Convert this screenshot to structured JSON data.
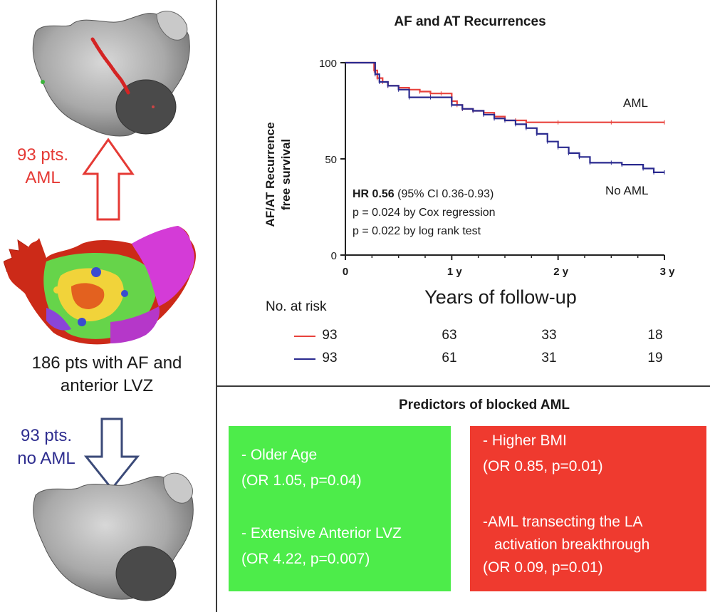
{
  "left_panel": {
    "top_label_line1": "93 pts.",
    "top_label_line2": "AML",
    "middle_caption_line1": "186 pts with AF and",
    "middle_caption_line2": "anterior LVZ",
    "bottom_label_line1": "93 pts.",
    "bottom_label_line2": "no AML",
    "colors": {
      "aml": "#e53a35",
      "no_aml": "#2e2d8f"
    }
  },
  "chart_data": {
    "type": "line",
    "title": "AF and AT Recurrences",
    "xlabel": "Years of follow-up",
    "ylabel_line1": "AF/AT Recurrence",
    "ylabel_line2": "free survival",
    "xlim": [
      0,
      3
    ],
    "ylim": [
      0,
      100
    ],
    "x_ticks": [
      "0",
      "1 y",
      "2 y",
      "3 y"
    ],
    "y_ticks": [
      "0",
      "50",
      "100"
    ],
    "series": [
      {
        "name": "AML",
        "color": "#e8423c",
        "points": [
          [
            0,
            100
          ],
          [
            0.25,
            100
          ],
          [
            0.27,
            96
          ],
          [
            0.3,
            92
          ],
          [
            0.35,
            90
          ],
          [
            0.4,
            88
          ],
          [
            0.5,
            87
          ],
          [
            0.6,
            86
          ],
          [
            0.7,
            85
          ],
          [
            0.8,
            84
          ],
          [
            0.9,
            84
          ],
          [
            1.0,
            80
          ],
          [
            1.05,
            78
          ],
          [
            1.1,
            76
          ],
          [
            1.2,
            75
          ],
          [
            1.3,
            74
          ],
          [
            1.4,
            72
          ],
          [
            1.5,
            70
          ],
          [
            1.6,
            70
          ],
          [
            1.7,
            69
          ],
          [
            2.0,
            69
          ],
          [
            2.5,
            69
          ],
          [
            3.0,
            69
          ]
        ]
      },
      {
        "name": "No AML",
        "color": "#2a2a8f",
        "points": [
          [
            0,
            100
          ],
          [
            0.25,
            100
          ],
          [
            0.28,
            94
          ],
          [
            0.32,
            90
          ],
          [
            0.4,
            88
          ],
          [
            0.5,
            86
          ],
          [
            0.6,
            82
          ],
          [
            0.8,
            82
          ],
          [
            1.0,
            78
          ],
          [
            1.1,
            76
          ],
          [
            1.2,
            75
          ],
          [
            1.3,
            73
          ],
          [
            1.4,
            71
          ],
          [
            1.5,
            70
          ],
          [
            1.6,
            68
          ],
          [
            1.7,
            66
          ],
          [
            1.8,
            63
          ],
          [
            1.9,
            59
          ],
          [
            2.0,
            56
          ],
          [
            2.1,
            53
          ],
          [
            2.2,
            51
          ],
          [
            2.3,
            48
          ],
          [
            2.5,
            48
          ],
          [
            2.6,
            47
          ],
          [
            2.8,
            45
          ],
          [
            2.9,
            43
          ],
          [
            3.0,
            43
          ]
        ]
      }
    ],
    "series_labels": {
      "aml": "AML",
      "no_aml": "No AML"
    },
    "stats": {
      "hr_label": "HR 0.56",
      "hr_ci": " (95% CI 0.36-0.93)",
      "cox": "p = 0.024 by Cox regression",
      "logrank": "p = 0.022 by log rank test"
    },
    "risk_table": {
      "title": "No. at risk",
      "aml": [
        93,
        63,
        33,
        18
      ],
      "no_aml": [
        93,
        61,
        31,
        19
      ]
    }
  },
  "predictors": {
    "title": "Predictors of blocked AML",
    "green_box": [
      "- Older Age",
      "(OR 1.05, p=0.04)",
      "- Extensive Anterior  LVZ",
      "(OR 4.22, p=0.007)"
    ],
    "red_box": [
      "- Higher BMI",
      "(OR 0.85, p=0.01)",
      "-AML transecting the LA",
      "activation breakthrough",
      "(OR 0.09, p=0.01)"
    ]
  }
}
